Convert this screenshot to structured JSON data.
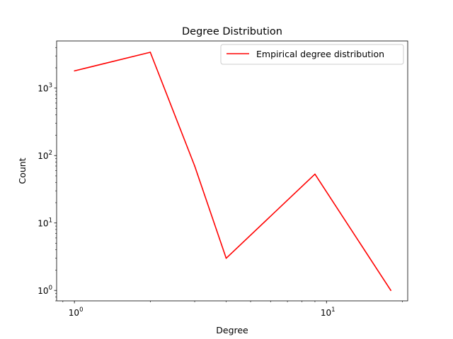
{
  "chart_data": {
    "type": "line",
    "title": "Degree Distribution",
    "xlabel": "Degree",
    "ylabel": "Count",
    "xscale": "log",
    "yscale": "log",
    "xlim": [
      0.85,
      21
    ],
    "ylim": [
      0.7,
      5000
    ],
    "grid": false,
    "legend_position": "top-right",
    "x_ticks": [
      {
        "value": 1,
        "base": "10",
        "exp": "0"
      },
      {
        "value": 10,
        "base": "10",
        "exp": "1"
      }
    ],
    "y_ticks": [
      {
        "value": 1,
        "base": "10",
        "exp": "0"
      },
      {
        "value": 10,
        "base": "10",
        "exp": "1"
      },
      {
        "value": 100,
        "base": "10",
        "exp": "2"
      },
      {
        "value": 1000,
        "base": "10",
        "exp": "3"
      }
    ],
    "series": [
      {
        "name": "Empirical degree distribution",
        "color": "#ff0000",
        "x": [
          1,
          2,
          3,
          4,
          9,
          18
        ],
        "y": [
          1800,
          3400,
          70,
          3,
          53,
          1
        ]
      }
    ]
  }
}
